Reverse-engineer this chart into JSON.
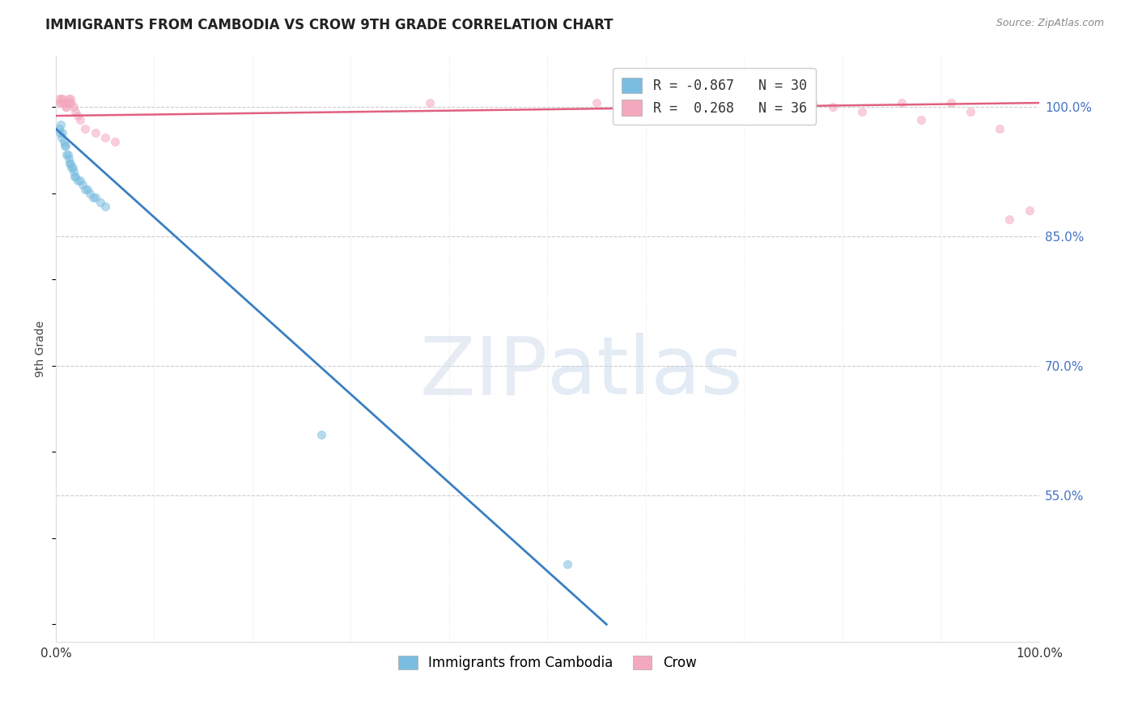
{
  "title": "IMMIGRANTS FROM CAMBODIA VS CROW 9TH GRADE CORRELATION CHART",
  "source": "Source: ZipAtlas.com",
  "ylabel": "9th Grade",
  "xlim": [
    0.0,
    1.0
  ],
  "ylim": [
    0.38,
    1.06
  ],
  "ytick_labels_right": [
    "55.0%",
    "70.0%",
    "85.0%",
    "100.0%"
  ],
  "ytick_vals_right": [
    0.55,
    0.7,
    0.85,
    1.0
  ],
  "background_color": "#ffffff",
  "grid_color": "#cccccc",
  "blue_color": "#7bbde0",
  "pink_color": "#f4a8be",
  "blue_line_color": "#3a7fc1",
  "pink_line_color": "#e06080",
  "blue_scatter_x": [
    0.003,
    0.004,
    0.005,
    0.006,
    0.007,
    0.008,
    0.009,
    0.01,
    0.011,
    0.012,
    0.013,
    0.014,
    0.015,
    0.016,
    0.017,
    0.018,
    0.019,
    0.02,
    0.022,
    0.025,
    0.027,
    0.03,
    0.032,
    0.035,
    0.038,
    0.04,
    0.045,
    0.05,
    0.27,
    0.52
  ],
  "blue_scatter_y": [
    0.975,
    0.97,
    0.98,
    0.965,
    0.97,
    0.96,
    0.955,
    0.955,
    0.945,
    0.945,
    0.94,
    0.935,
    0.935,
    0.93,
    0.93,
    0.925,
    0.92,
    0.92,
    0.915,
    0.915,
    0.91,
    0.905,
    0.905,
    0.9,
    0.895,
    0.895,
    0.89,
    0.885,
    0.62,
    0.47
  ],
  "pink_scatter_x": [
    0.003,
    0.004,
    0.005,
    0.006,
    0.007,
    0.008,
    0.009,
    0.01,
    0.011,
    0.012,
    0.013,
    0.014,
    0.015,
    0.016,
    0.018,
    0.02,
    0.022,
    0.025,
    0.03,
    0.04,
    0.05,
    0.06,
    0.38,
    0.55,
    0.63,
    0.72,
    0.77,
    0.79,
    0.82,
    0.86,
    0.88,
    0.91,
    0.93,
    0.96,
    0.97,
    0.99
  ],
  "pink_scatter_y": [
    1.01,
    1.005,
    1.005,
    1.01,
    1.01,
    1.005,
    1.005,
    1.0,
    1.0,
    1.005,
    1.01,
    1.005,
    1.01,
    1.005,
    1.0,
    0.995,
    0.99,
    0.985,
    0.975,
    0.97,
    0.965,
    0.96,
    1.005,
    1.005,
    1.005,
    1.0,
    1.005,
    1.0,
    0.995,
    1.005,
    0.985,
    1.005,
    0.995,
    0.975,
    0.87,
    0.88
  ],
  "blue_line_x0": 0.0,
  "blue_line_y0": 0.975,
  "blue_line_x1": 0.56,
  "blue_line_y1": 0.4,
  "pink_line_x0": 0.0,
  "pink_line_y0": 0.99,
  "pink_line_x1": 1.0,
  "pink_line_y1": 1.005,
  "legend_blue_label": "R = -0.867   N = 30",
  "legend_pink_label": "R =  0.268   N = 36",
  "scatter_size": 55,
  "scatter_alpha": 0.55
}
